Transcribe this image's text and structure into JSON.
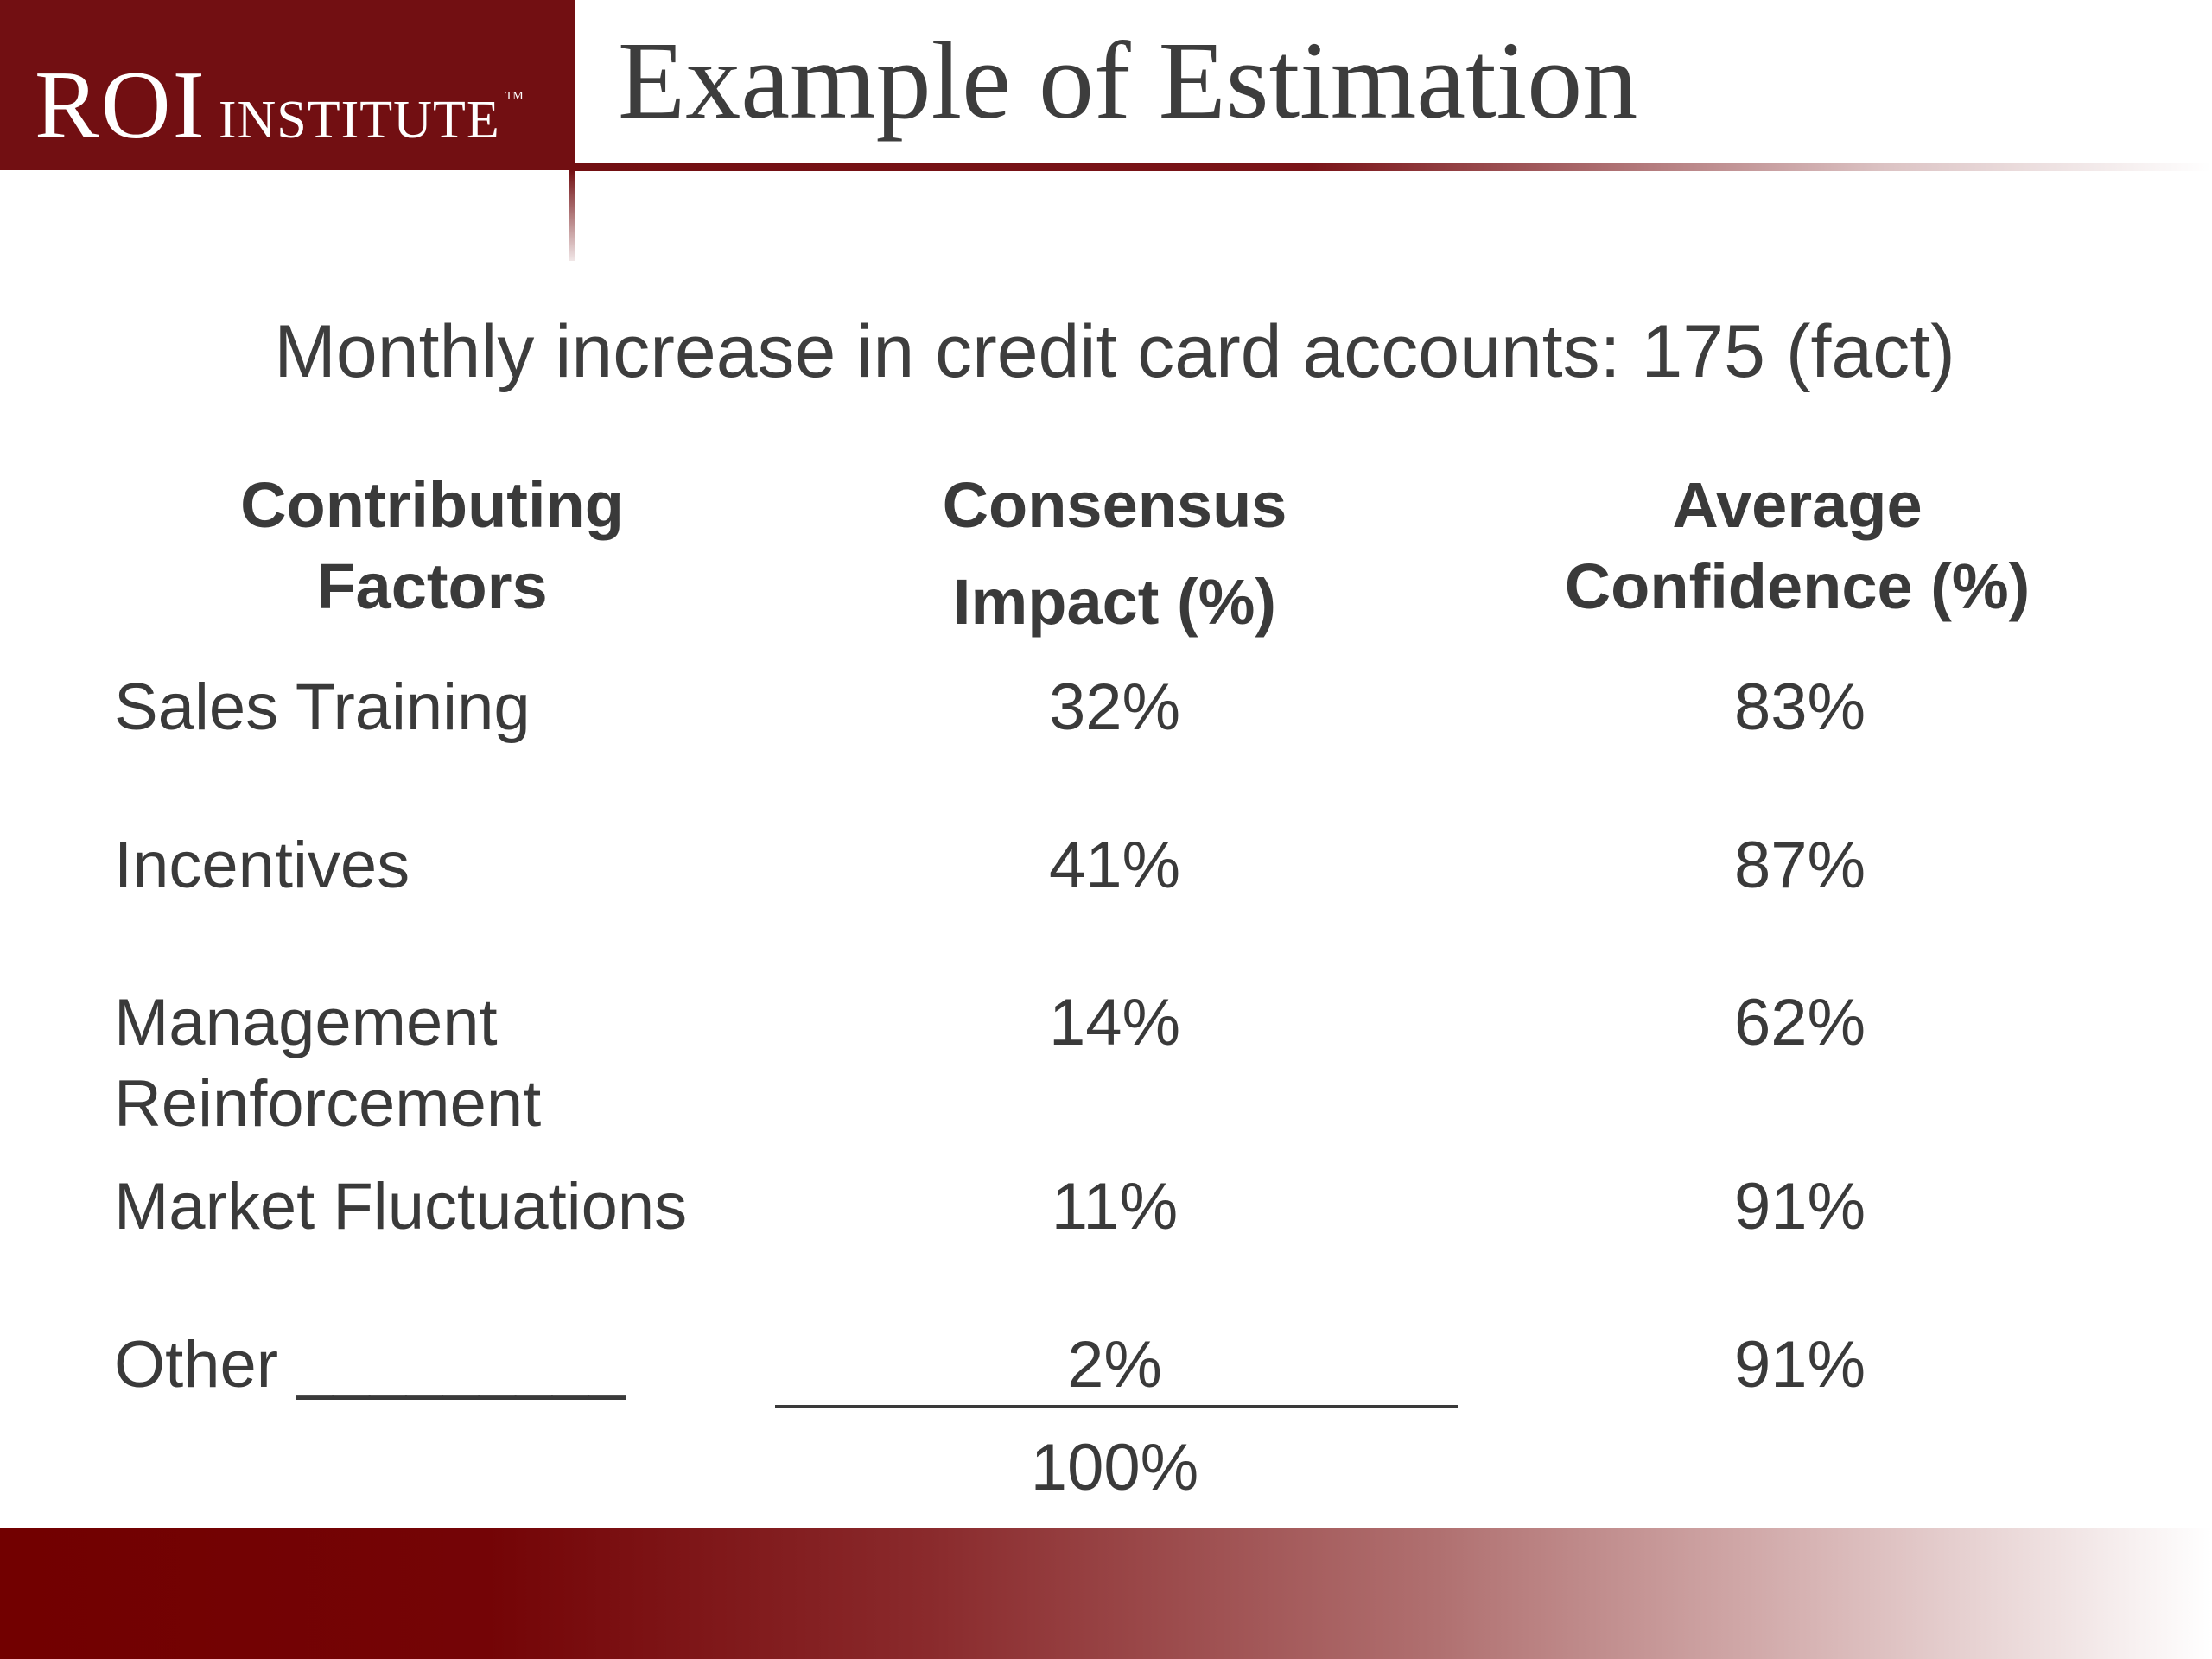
{
  "brand": {
    "name": "ROI",
    "sub": "INSTITUTE",
    "tm": "TM",
    "color": "#720f12"
  },
  "slide": {
    "title": "Example of Estimation",
    "subtitle": "Monthly increase in credit card accounts: 175 (fact)"
  },
  "table": {
    "headers": {
      "factor_line1": "Contributing",
      "factor_line2": "Factors",
      "impact_line1": "Consensus",
      "impact_line2": "Impact (%)",
      "confidence_line1": "Average",
      "confidence_line2": "Confidence (%)"
    },
    "rows": [
      {
        "factor": "Sales Training",
        "impact": "32%",
        "confidence": "83%"
      },
      {
        "factor": "Incentives",
        "impact": "41%",
        "confidence": "87%"
      },
      {
        "factor": "Management Reinforcement",
        "impact": "14%",
        "confidence": "62%"
      },
      {
        "factor": "Market Fluctuations",
        "impact": "11%",
        "confidence": "91%"
      },
      {
        "factor": "Other _________",
        "impact": "2%",
        "confidence": "91%"
      }
    ],
    "total": "100%"
  }
}
